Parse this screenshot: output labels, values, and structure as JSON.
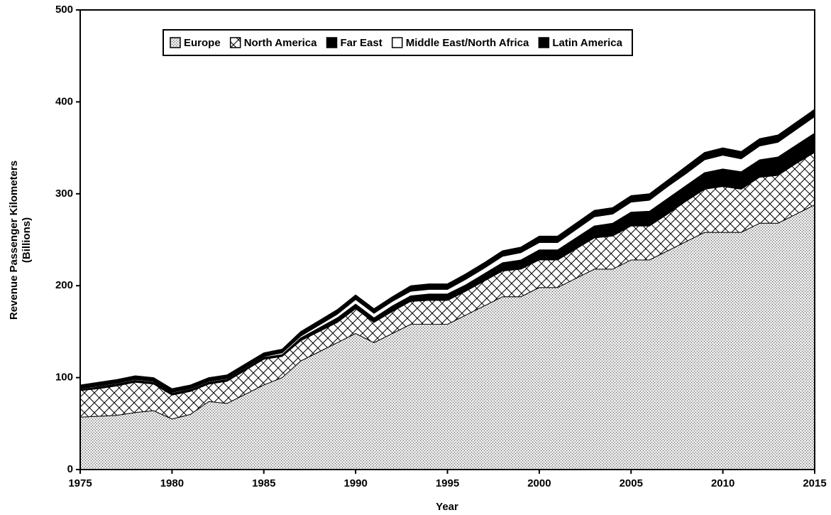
{
  "chart_data": {
    "type": "stacked-area",
    "xlabel": "Year",
    "ylabel": [
      "Revenue Passenger Kilometers",
      "(Billions)"
    ],
    "x": [
      1975,
      1976,
      1977,
      1978,
      1979,
      1980,
      1981,
      1982,
      1983,
      1984,
      1985,
      1986,
      1987,
      1988,
      1989,
      1990,
      1991,
      1992,
      1993,
      1994,
      1995,
      1996,
      1997,
      1998,
      1999,
      2000,
      2001,
      2002,
      2003,
      2004,
      2005,
      2006,
      2007,
      2008,
      2009,
      2010,
      2011,
      2012,
      2013,
      2014,
      2015
    ],
    "xlim": [
      1975,
      2015
    ],
    "xticks": [
      1975,
      1980,
      1985,
      1990,
      1995,
      2000,
      2005,
      2010,
      2015
    ],
    "ylim": [
      0,
      500
    ],
    "yticks": [
      0,
      100,
      200,
      300,
      400,
      500
    ],
    "series": [
      {
        "name": "Europe",
        "color": "#d4d4d4",
        "values": [
          57,
          58,
          59,
          62,
          64,
          55,
          60,
          74,
          72,
          82,
          92,
          100,
          118,
          128,
          138,
          148,
          138,
          148,
          158,
          158,
          158,
          168,
          178,
          188,
          188,
          198,
          198,
          208,
          218,
          218,
          228,
          228,
          238,
          248,
          258,
          258,
          258,
          268,
          268,
          278,
          288
        ]
      },
      {
        "name": "North America",
        "color": "#ffffff",
        "values": [
          29,
          30,
          32,
          33,
          29,
          26,
          25,
          19,
          24,
          26,
          28,
          23,
          22,
          22,
          22,
          27,
          22,
          24,
          25,
          26,
          26,
          26,
          27,
          28,
          30,
          30,
          30,
          32,
          34,
          36,
          37,
          37,
          40,
          44,
          47,
          50,
          47,
          50,
          52,
          55,
          57
        ]
      },
      {
        "name": "Far East",
        "color": "#000000",
        "values": [
          1,
          2,
          2,
          2,
          2,
          2,
          2,
          2,
          2,
          2,
          2,
          2,
          3,
          4,
          5,
          5,
          5,
          6,
          6,
          7,
          7,
          7,
          8,
          9,
          10,
          11,
          11,
          12,
          13,
          14,
          15,
          16,
          17,
          17,
          18,
          19,
          19,
          19,
          20,
          20,
          21
        ]
      },
      {
        "name": "Middle East/North Africa",
        "color": "#ffffff",
        "values": [
          1,
          1,
          1,
          1,
          1,
          1,
          1,
          1,
          1,
          1,
          1,
          2,
          2,
          3,
          4,
          5,
          5,
          5,
          5,
          5,
          5,
          6,
          6,
          7,
          8,
          8,
          8,
          9,
          10,
          10,
          11,
          12,
          13,
          13,
          14,
          15,
          14,
          15,
          16,
          17,
          18
        ]
      },
      {
        "name": "Latin America",
        "color": "#000000",
        "values": [
          4,
          4,
          4,
          4,
          4,
          4,
          4,
          4,
          4,
          4,
          4,
          4,
          5,
          5,
          5,
          5,
          5,
          5,
          6,
          6,
          6,
          6,
          6,
          6,
          6,
          7,
          7,
          7,
          7,
          7,
          7,
          7,
          7,
          8,
          8,
          8,
          8,
          8,
          8,
          8,
          8
        ]
      }
    ]
  }
}
